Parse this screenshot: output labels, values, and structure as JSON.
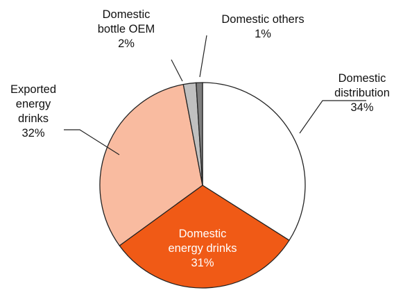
{
  "chart_data": {
    "type": "pie",
    "title": "",
    "start": "12 o'clock",
    "direction": "clockwise",
    "slices": [
      {
        "name": "Domestic distribution",
        "lines": [
          "Domestic",
          "distribution",
          "34%"
        ],
        "value": 34,
        "color": "#ffffff",
        "label_color": "#111111"
      },
      {
        "name": "Domestic energy drinks",
        "lines": [
          "Domestic",
          "energy drinks",
          "31%"
        ],
        "value": 31,
        "color": "#f05a16",
        "label_color": "#ffffff"
      },
      {
        "name": "Exported energy drinks",
        "lines": [
          "Exported",
          "energy",
          "drinks",
          "32%"
        ],
        "value": 32,
        "color": "#f9bba0",
        "label_color": "#111111"
      },
      {
        "name": "Domestic bottle OEM",
        "lines": [
          "Domestic",
          "bottle OEM",
          "2%"
        ],
        "value": 2,
        "color": "#c0c0c0",
        "label_color": "#111111"
      },
      {
        "name": "Domestic others",
        "lines": [
          "Domestic others",
          "1%"
        ],
        "value": 1,
        "color": "#7f7f7f",
        "label_color": "#111111"
      }
    ]
  }
}
